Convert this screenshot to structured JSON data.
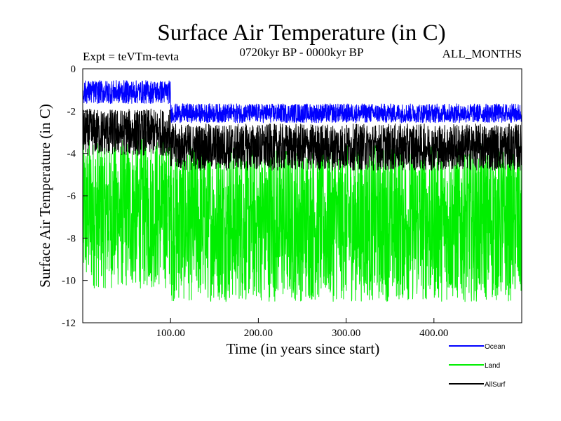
{
  "chart_data": {
    "type": "line",
    "title": "Surface Air Temperature (in C)",
    "subtitle_left": "Expt = teVTm-tevta",
    "subtitle_center": "0720kyr BP - 0000kyr BP",
    "subtitle_right": "ALL_MONTHS",
    "xlabel": "Time (in years since start)",
    "ylabel": "Surface Air Temperature (in C)",
    "xlim": [
      0,
      500
    ],
    "ylim": [
      -12,
      0
    ],
    "x_ticks": [
      100,
      200,
      300,
      400
    ],
    "x_tick_labels": [
      "100.00",
      "200.00",
      "300.00",
      "400.00"
    ],
    "y_ticks": [
      0,
      -2,
      -4,
      -6,
      -8,
      -10,
      -12
    ],
    "y_tick_labels": [
      "0",
      "-2",
      "-4",
      "-6",
      "-8",
      "-10",
      "-12"
    ],
    "grid": false,
    "legend_position": "bottom-right",
    "series": [
      {
        "name": "Land",
        "color": "#00ee00",
        "segments": [
          {
            "x_start": 0,
            "x_end": 100,
            "mean": -6.8,
            "half_range": 3.6
          },
          {
            "x_start": 100,
            "x_end": 500,
            "mean": -7.3,
            "half_range": 3.7
          }
        ],
        "approx_min": -11.7,
        "approx_max": -2.7
      },
      {
        "name": "AllSurf",
        "color": "#000000",
        "segments": [
          {
            "x_start": 0,
            "x_end": 100,
            "mean": -3.0,
            "half_range": 1.1
          },
          {
            "x_start": 100,
            "x_end": 500,
            "mean": -3.7,
            "half_range": 1.1
          }
        ],
        "approx_min": -5.0,
        "approx_max": -1.4
      },
      {
        "name": "Ocean",
        "color": "#0000ff",
        "segments": [
          {
            "x_start": 0,
            "x_end": 100,
            "mean": -1.1,
            "half_range": 0.55
          },
          {
            "x_start": 100,
            "x_end": 500,
            "mean": -2.1,
            "half_range": 0.45
          }
        ],
        "approx_min": -2.8,
        "approx_max": -0.2
      }
    ],
    "legend": [
      {
        "label": "Ocean",
        "color": "#0000ff"
      },
      {
        "label": "Land",
        "color": "#00ee00"
      },
      {
        "label": "AllSurf",
        "color": "#000000"
      }
    ]
  }
}
